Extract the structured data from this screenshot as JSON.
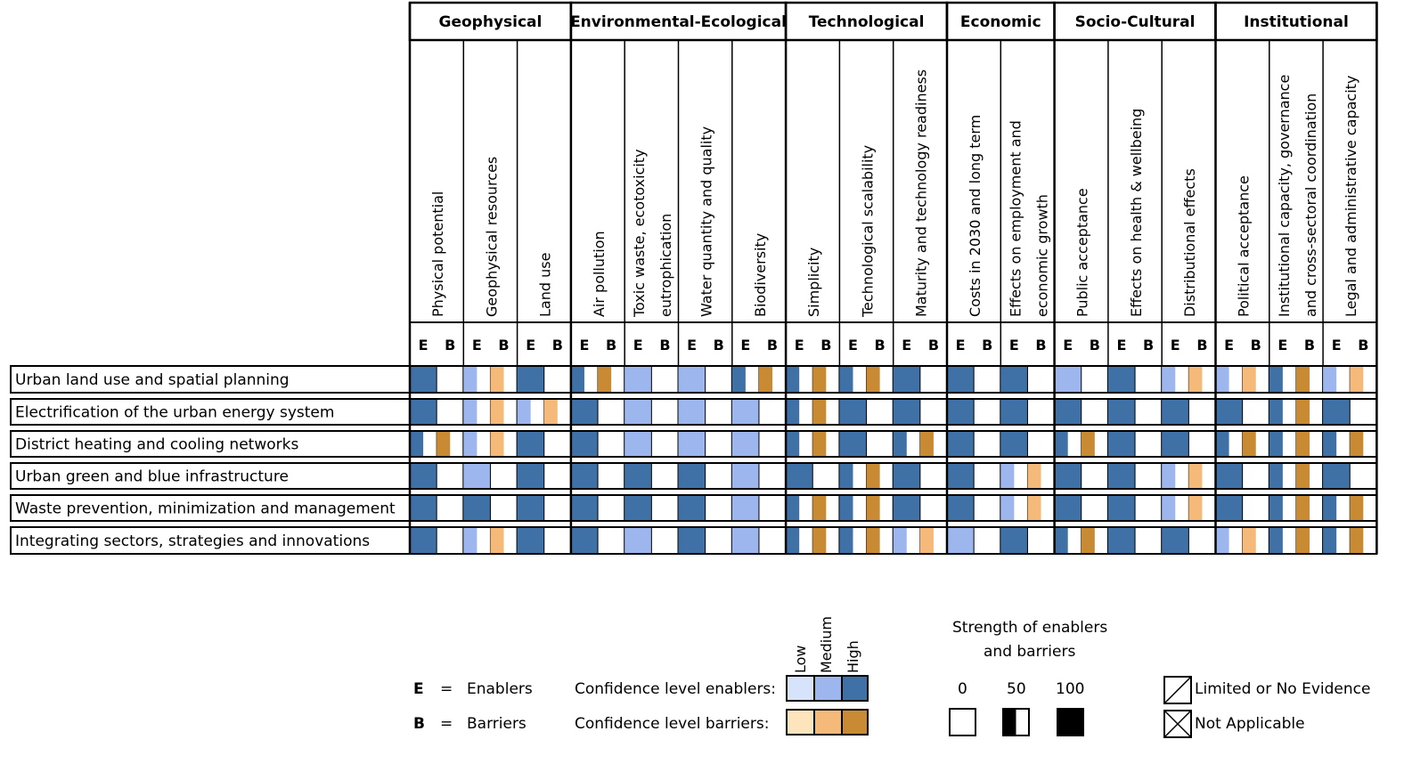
{
  "chart_data": {
    "type": "heatmap",
    "groups": [
      {
        "name": "Geophysical",
        "span": 3
      },
      {
        "name": "Environmental-Ecological",
        "span": 4
      },
      {
        "name": "Technological",
        "span": 3
      },
      {
        "name": "Economic",
        "span": 2
      },
      {
        "name": "Socio-Cultural",
        "span": 3
      },
      {
        "name": "Institutional",
        "span": 3
      }
    ],
    "indicators": [
      [
        "Physical potential"
      ],
      [
        "Geophysical resources"
      ],
      [
        "Land use"
      ],
      [
        "Air pollution"
      ],
      [
        "Toxic waste, ecotoxicity",
        "eutrophication"
      ],
      [
        "Water quantity and quality"
      ],
      [
        "Biodiversity"
      ],
      [
        "Simplicity"
      ],
      [
        "Technological scalability"
      ],
      [
        "Maturity and technology readiness"
      ],
      [
        "Costs in 2030 and long term"
      ],
      [
        "Effects on employment and",
        "economic growth"
      ],
      [
        "Public acceptance"
      ],
      [
        "Effects on health & wellbeing"
      ],
      [
        "Distributional effects"
      ],
      [
        "Political acceptance"
      ],
      [
        "Institutional capacity, governance",
        "and cross-sectoral coordination"
      ],
      [
        "Legal and administrative capacity"
      ]
    ],
    "eb_labels": [
      "E",
      "B"
    ],
    "rows": [
      "Urban land use and spatial planning",
      "Electrification of the urban energy system",
      "District heating and cooling networks",
      "Urban green and blue infrastructure",
      "Waste prevention, minimization and management",
      "Integrating sectors, strategies and innovations"
    ],
    "value_encoding": "[confidence, strength]; confidence: 1=low, 2=medium, 3=high, 0=none; strength: 0, 50 or 100 (0 = empty)",
    "E": [
      [
        [
          3,
          100
        ],
        [
          2,
          50
        ],
        [
          3,
          100
        ],
        [
          3,
          50
        ],
        [
          2,
          100
        ],
        [
          2,
          100
        ],
        [
          3,
          50
        ],
        [
          3,
          50
        ],
        [
          3,
          50
        ],
        [
          3,
          100
        ],
        [
          3,
          100
        ],
        [
          3,
          100
        ],
        [
          2,
          100
        ],
        [
          3,
          100
        ],
        [
          2,
          50
        ],
        [
          2,
          50
        ],
        [
          3,
          50
        ],
        [
          2,
          50
        ]
      ],
      [
        [
          3,
          100
        ],
        [
          2,
          50
        ],
        [
          2,
          50
        ],
        [
          3,
          100
        ],
        [
          2,
          100
        ],
        [
          2,
          100
        ],
        [
          2,
          100
        ],
        [
          3,
          50
        ],
        [
          3,
          100
        ],
        [
          3,
          100
        ],
        [
          3,
          100
        ],
        [
          3,
          100
        ],
        [
          3,
          100
        ],
        [
          3,
          100
        ],
        [
          3,
          100
        ],
        [
          3,
          100
        ],
        [
          3,
          50
        ],
        [
          3,
          100
        ]
      ],
      [
        [
          3,
          50
        ],
        [
          2,
          50
        ],
        [
          3,
          100
        ],
        [
          3,
          100
        ],
        [
          2,
          100
        ],
        [
          2,
          100
        ],
        [
          2,
          100
        ],
        [
          3,
          50
        ],
        [
          3,
          100
        ],
        [
          3,
          50
        ],
        [
          3,
          100
        ],
        [
          3,
          100
        ],
        [
          3,
          50
        ],
        [
          3,
          100
        ],
        [
          3,
          100
        ],
        [
          3,
          50
        ],
        [
          3,
          50
        ],
        [
          3,
          50
        ]
      ],
      [
        [
          3,
          100
        ],
        [
          2,
          100
        ],
        [
          3,
          100
        ],
        [
          3,
          100
        ],
        [
          3,
          100
        ],
        [
          3,
          100
        ],
        [
          2,
          100
        ],
        [
          3,
          100
        ],
        [
          3,
          50
        ],
        [
          3,
          100
        ],
        [
          3,
          100
        ],
        [
          2,
          50
        ],
        [
          3,
          100
        ],
        [
          3,
          100
        ],
        [
          2,
          50
        ],
        [
          3,
          100
        ],
        [
          3,
          50
        ],
        [
          3,
          100
        ]
      ],
      [
        [
          3,
          100
        ],
        [
          3,
          100
        ],
        [
          3,
          100
        ],
        [
          3,
          100
        ],
        [
          3,
          100
        ],
        [
          3,
          100
        ],
        [
          2,
          100
        ],
        [
          3,
          50
        ],
        [
          3,
          50
        ],
        [
          3,
          100
        ],
        [
          3,
          100
        ],
        [
          2,
          50
        ],
        [
          3,
          100
        ],
        [
          3,
          100
        ],
        [
          2,
          50
        ],
        [
          3,
          100
        ],
        [
          3,
          50
        ],
        [
          3,
          50
        ]
      ],
      [
        [
          3,
          100
        ],
        [
          2,
          50
        ],
        [
          3,
          100
        ],
        [
          3,
          100
        ],
        [
          2,
          100
        ],
        [
          3,
          100
        ],
        [
          2,
          100
        ],
        [
          3,
          50
        ],
        [
          3,
          50
        ],
        [
          2,
          50
        ],
        [
          2,
          100
        ],
        [
          3,
          100
        ],
        [
          3,
          50
        ],
        [
          3,
          100
        ],
        [
          3,
          100
        ],
        [
          2,
          50
        ],
        [
          3,
          50
        ],
        [
          3,
          50
        ]
      ]
    ],
    "B": [
      [
        [
          0,
          0
        ],
        [
          2,
          50
        ],
        [
          0,
          0
        ],
        [
          3,
          50
        ],
        [
          0,
          0
        ],
        [
          0,
          0
        ],
        [
          3,
          50
        ],
        [
          3,
          50
        ],
        [
          3,
          50
        ],
        [
          0,
          0
        ],
        [
          0,
          0
        ],
        [
          0,
          0
        ],
        [
          0,
          0
        ],
        [
          0,
          0
        ],
        [
          2,
          50
        ],
        [
          2,
          50
        ],
        [
          3,
          50
        ],
        [
          2,
          50
        ]
      ],
      [
        [
          0,
          0
        ],
        [
          2,
          50
        ],
        [
          2,
          50
        ],
        [
          0,
          0
        ],
        [
          0,
          0
        ],
        [
          0,
          0
        ],
        [
          0,
          0
        ],
        [
          3,
          50
        ],
        [
          0,
          0
        ],
        [
          0,
          0
        ],
        [
          0,
          0
        ],
        [
          0,
          0
        ],
        [
          0,
          0
        ],
        [
          0,
          0
        ],
        [
          0,
          0
        ],
        [
          0,
          0
        ],
        [
          3,
          50
        ],
        [
          0,
          0
        ]
      ],
      [
        [
          3,
          50
        ],
        [
          2,
          50
        ],
        [
          0,
          0
        ],
        [
          0,
          0
        ],
        [
          0,
          0
        ],
        [
          0,
          0
        ],
        [
          0,
          0
        ],
        [
          3,
          50
        ],
        [
          0,
          0
        ],
        [
          3,
          50
        ],
        [
          0,
          0
        ],
        [
          0,
          0
        ],
        [
          3,
          50
        ],
        [
          0,
          0
        ],
        [
          0,
          0
        ],
        [
          3,
          50
        ],
        [
          3,
          50
        ],
        [
          3,
          50
        ]
      ],
      [
        [
          0,
          0
        ],
        [
          0,
          0
        ],
        [
          0,
          0
        ],
        [
          0,
          0
        ],
        [
          0,
          0
        ],
        [
          0,
          0
        ],
        [
          0,
          0
        ],
        [
          0,
          0
        ],
        [
          3,
          50
        ],
        [
          0,
          0
        ],
        [
          0,
          0
        ],
        [
          2,
          50
        ],
        [
          0,
          0
        ],
        [
          0,
          0
        ],
        [
          2,
          50
        ],
        [
          0,
          0
        ],
        [
          3,
          50
        ],
        [
          0,
          0
        ]
      ],
      [
        [
          0,
          0
        ],
        [
          0,
          0
        ],
        [
          0,
          0
        ],
        [
          0,
          0
        ],
        [
          0,
          0
        ],
        [
          0,
          0
        ],
        [
          0,
          0
        ],
        [
          3,
          50
        ],
        [
          3,
          50
        ],
        [
          0,
          0
        ],
        [
          0,
          0
        ],
        [
          2,
          50
        ],
        [
          0,
          0
        ],
        [
          0,
          0
        ],
        [
          2,
          50
        ],
        [
          0,
          0
        ],
        [
          3,
          50
        ],
        [
          3,
          50
        ]
      ],
      [
        [
          0,
          0
        ],
        [
          2,
          50
        ],
        [
          0,
          0
        ],
        [
          0,
          0
        ],
        [
          0,
          0
        ],
        [
          0,
          0
        ],
        [
          0,
          0
        ],
        [
          3,
          50
        ],
        [
          3,
          50
        ],
        [
          2,
          50
        ],
        [
          0,
          0
        ],
        [
          0,
          0
        ],
        [
          3,
          50
        ],
        [
          0,
          0
        ],
        [
          0,
          0
        ],
        [
          2,
          50
        ],
        [
          3,
          50
        ],
        [
          3,
          50
        ]
      ]
    ]
  },
  "colors": {
    "enabler": {
      "low": "#d6e3fb",
      "medium": "#9db7ee",
      "high": "#3f70a6"
    },
    "barrier": {
      "low": "#fde4bd",
      "medium": "#f5ba79",
      "high": "#c98a34"
    }
  },
  "legend": {
    "e_symbol": "E",
    "e_eq": "=",
    "e_text": "Enablers",
    "b_symbol": "B",
    "b_eq": "=",
    "b_text": "Barriers",
    "conf_enablers": "Confidence level enablers:",
    "conf_barriers": "Confidence level barriers:",
    "conf_low": "Low",
    "conf_medium": "Medium",
    "conf_high": "High",
    "strength_title_1": "Strength of enablers",
    "strength_title_2": "and barriers",
    "strength_0": "0",
    "strength_50": "50",
    "strength_100": "100",
    "limited": "Limited or No Evidence",
    "not_applicable": "Not Applicable"
  }
}
